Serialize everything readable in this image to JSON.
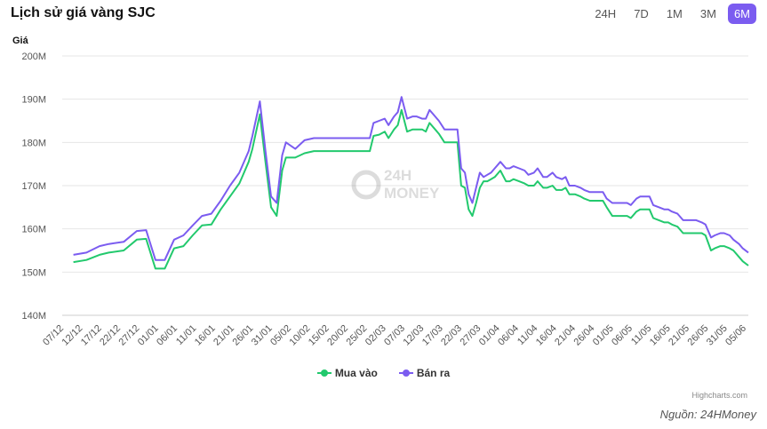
{
  "header": {
    "title": "Lịch sử giá vàng SJC",
    "tabs": [
      {
        "label": "24H",
        "active": false
      },
      {
        "label": "7D",
        "active": false
      },
      {
        "label": "1M",
        "active": false
      },
      {
        "label": "3M",
        "active": false
      },
      {
        "label": "6M",
        "active": true
      }
    ]
  },
  "watermark": "24H MONEY",
  "credits": "Highcharts.com",
  "source": "Nguồn: 24HMoney",
  "chart_data": {
    "type": "line",
    "title": "Lịch sử giá vàng SJC",
    "ylabel": "Giá",
    "xlabel": "",
    "ylim": [
      140,
      200
    ],
    "yticks": [
      140,
      150,
      160,
      170,
      180,
      190,
      200
    ],
    "ytick_suffix": "M",
    "grid": true,
    "legend_position": "bottom-center",
    "x_ticks": [
      "07/12",
      "12/12",
      "17/12",
      "22/12",
      "27/12",
      "01/01",
      "06/01",
      "11/01",
      "16/01",
      "21/01",
      "26/01",
      "31/01",
      "05/02",
      "10/02",
      "15/02",
      "20/02",
      "25/02",
      "02/03",
      "07/03",
      "12/03",
      "17/03",
      "22/03",
      "27/03",
      "01/04",
      "06/04",
      "11/04",
      "16/04",
      "21/04",
      "26/04",
      "01/05",
      "06/05",
      "11/05",
      "16/05",
      "21/05",
      "26/05",
      "31/05",
      "05/06"
    ],
    "series": [
      {
        "name": "Mua vào",
        "color": "#22c96d",
        "values": [
          152.3,
          152.5,
          152.9,
          153.6,
          154.4,
          155.1,
          155.7,
          157.8,
          157.5,
          150.8,
          150.8,
          150.8,
          155.8,
          156.4,
          158.6,
          159.1,
          160.8,
          161.1,
          161.1,
          164.5,
          167.8,
          170.3,
          175.6,
          186.5,
          165.3,
          163.0,
          173.5,
          176.5,
          177.3,
          178.0,
          178.0,
          178.0,
          178.0,
          178.0,
          178.0,
          178.0,
          181.7,
          182.5,
          188.0,
          183.1,
          183.2,
          184.5,
          180.0,
          179.8,
          170.0,
          163.6,
          169.5,
          171.0,
          172.1,
          170.5,
          170.2,
          169.8,
          169.7,
          169.2,
          167.9,
          167.5,
          166.6,
          166.4,
          166.2,
          163.1,
          163.0,
          163.0,
          164.5,
          164.5,
          162.5,
          162.0,
          161.2,
          159.5,
          159.0,
          159.0,
          155.1,
          156.2,
          154.8,
          154.3,
          151.5
        ],
        "points": [
          [
            6,
            152.3
          ],
          [
            13,
            152.8
          ],
          [
            20,
            154.0
          ],
          [
            25,
            154.5
          ],
          [
            33,
            155.0
          ],
          [
            40,
            157.5
          ],
          [
            45,
            157.7
          ],
          [
            50,
            150.8
          ],
          [
            55,
            150.8
          ],
          [
            60,
            155.5
          ],
          [
            65,
            156.0
          ],
          [
            70,
            158.5
          ],
          [
            75,
            160.8
          ],
          [
            80,
            161.0
          ],
          [
            85,
            164.5
          ],
          [
            90,
            167.5
          ],
          [
            95,
            170.5
          ],
          [
            100,
            175.5
          ],
          [
            102,
            178.5
          ],
          [
            106,
            186.5
          ],
          [
            109,
            175.5
          ],
          [
            112,
            165.0
          ],
          [
            115,
            163.0
          ],
          [
            118,
            173.5
          ],
          [
            120,
            176.5
          ],
          [
            125,
            176.5
          ],
          [
            130,
            177.5
          ],
          [
            135,
            178.0
          ],
          [
            140,
            178.0
          ],
          [
            145,
            178.0
          ],
          [
            150,
            178.0
          ],
          [
            155,
            178.0
          ],
          [
            160,
            178.0
          ],
          [
            165,
            178.0
          ],
          [
            167,
            181.5
          ],
          [
            170,
            181.8
          ],
          [
            173,
            182.5
          ],
          [
            175,
            181.0
          ],
          [
            178,
            183.0
          ],
          [
            180,
            184.0
          ],
          [
            182,
            187.5
          ],
          [
            185,
            182.5
          ],
          [
            188,
            183.0
          ],
          [
            190,
            183.0
          ],
          [
            193,
            183.0
          ],
          [
            195,
            182.5
          ],
          [
            197,
            184.5
          ],
          [
            200,
            183.0
          ],
          [
            202,
            182.0
          ],
          [
            205,
            180.0
          ],
          [
            208,
            180.0
          ],
          [
            210,
            180.0
          ],
          [
            212,
            180.0
          ],
          [
            214,
            170.0
          ],
          [
            216,
            169.5
          ],
          [
            218,
            164.5
          ],
          [
            220,
            163.0
          ],
          [
            222,
            166.0
          ],
          [
            224,
            169.5
          ],
          [
            226,
            171.0
          ],
          [
            228,
            171.0
          ],
          [
            230,
            171.5
          ],
          [
            232,
            172.0
          ],
          [
            235,
            173.5
          ],
          [
            238,
            171.0
          ],
          [
            240,
            171.0
          ],
          [
            242,
            171.5
          ],
          [
            245,
            171.0
          ],
          [
            248,
            170.5
          ],
          [
            250,
            170.0
          ],
          [
            253,
            170.0
          ],
          [
            255,
            171.0
          ],
          [
            258,
            169.5
          ],
          [
            260,
            169.5
          ],
          [
            263,
            170.0
          ],
          [
            265,
            169.0
          ],
          [
            268,
            169.0
          ],
          [
            270,
            169.5
          ],
          [
            272,
            168.0
          ],
          [
            275,
            168.0
          ],
          [
            278,
            167.5
          ],
          [
            280,
            167.0
          ],
          [
            283,
            166.5
          ],
          [
            285,
            166.5
          ],
          [
            290,
            166.5
          ],
          [
            292,
            165.0
          ],
          [
            295,
            163.0
          ],
          [
            300,
            163.0
          ],
          [
            303,
            163.0
          ],
          [
            305,
            162.5
          ],
          [
            308,
            164.0
          ],
          [
            310,
            164.5
          ],
          [
            315,
            164.5
          ],
          [
            317,
            162.5
          ],
          [
            320,
            162.0
          ],
          [
            323,
            161.5
          ],
          [
            325,
            161.5
          ],
          [
            327,
            161.0
          ],
          [
            330,
            160.5
          ],
          [
            333,
            159.0
          ],
          [
            335,
            159.0
          ],
          [
            340,
            159.0
          ],
          [
            343,
            159.0
          ],
          [
            345,
            158.5
          ],
          [
            348,
            155.0
          ],
          [
            350,
            155.5
          ],
          [
            353,
            156.0
          ],
          [
            355,
            156.0
          ],
          [
            358,
            155.5
          ],
          [
            360,
            155.0
          ],
          [
            363,
            153.5
          ],
          [
            365,
            152.5
          ],
          [
            368,
            151.5
          ]
        ]
      },
      {
        "name": "Bán ra",
        "color": "#7b5cf0",
        "points": [
          [
            6,
            154.0
          ],
          [
            13,
            154.5
          ],
          [
            20,
            156.0
          ],
          [
            25,
            156.5
          ],
          [
            33,
            157.0
          ],
          [
            40,
            159.5
          ],
          [
            45,
            159.7
          ],
          [
            50,
            152.8
          ],
          [
            55,
            152.8
          ],
          [
            60,
            157.5
          ],
          [
            65,
            158.5
          ],
          [
            70,
            160.8
          ],
          [
            75,
            163.0
          ],
          [
            80,
            163.5
          ],
          [
            85,
            166.5
          ],
          [
            90,
            170.0
          ],
          [
            95,
            173.0
          ],
          [
            100,
            178.0
          ],
          [
            102,
            181.5
          ],
          [
            106,
            189.5
          ],
          [
            109,
            178.0
          ],
          [
            112,
            167.5
          ],
          [
            115,
            166.0
          ],
          [
            118,
            177.0
          ],
          [
            120,
            180.0
          ],
          [
            125,
            178.5
          ],
          [
            130,
            180.5
          ],
          [
            135,
            181.0
          ],
          [
            140,
            181.0
          ],
          [
            145,
            181.0
          ],
          [
            150,
            181.0
          ],
          [
            155,
            181.0
          ],
          [
            160,
            181.0
          ],
          [
            165,
            181.0
          ],
          [
            167,
            184.5
          ],
          [
            170,
            185.0
          ],
          [
            173,
            185.5
          ],
          [
            175,
            184.0
          ],
          [
            178,
            186.0
          ],
          [
            180,
            187.0
          ],
          [
            182,
            190.5
          ],
          [
            185,
            185.5
          ],
          [
            188,
            186.0
          ],
          [
            190,
            186.0
          ],
          [
            193,
            185.5
          ],
          [
            195,
            185.5
          ],
          [
            197,
            187.5
          ],
          [
            200,
            186.0
          ],
          [
            202,
            185.0
          ],
          [
            205,
            183.0
          ],
          [
            208,
            183.0
          ],
          [
            210,
            183.0
          ],
          [
            212,
            183.0
          ],
          [
            214,
            174.0
          ],
          [
            216,
            173.0
          ],
          [
            218,
            168.0
          ],
          [
            220,
            166.0
          ],
          [
            222,
            169.5
          ],
          [
            224,
            173.0
          ],
          [
            226,
            172.0
          ],
          [
            228,
            172.5
          ],
          [
            230,
            173.0
          ],
          [
            232,
            174.0
          ],
          [
            235,
            175.5
          ],
          [
            238,
            174.0
          ],
          [
            240,
            174.0
          ],
          [
            242,
            174.5
          ],
          [
            245,
            174.0
          ],
          [
            248,
            173.5
          ],
          [
            250,
            172.5
          ],
          [
            253,
            173.0
          ],
          [
            255,
            174.0
          ],
          [
            258,
            172.0
          ],
          [
            260,
            172.0
          ],
          [
            263,
            173.0
          ],
          [
            265,
            172.0
          ],
          [
            268,
            171.5
          ],
          [
            270,
            172.0
          ],
          [
            272,
            170.0
          ],
          [
            275,
            170.0
          ],
          [
            278,
            169.5
          ],
          [
            280,
            169.0
          ],
          [
            283,
            168.5
          ],
          [
            285,
            168.5
          ],
          [
            290,
            168.5
          ],
          [
            292,
            167.0
          ],
          [
            295,
            166.0
          ],
          [
            300,
            166.0
          ],
          [
            303,
            166.0
          ],
          [
            305,
            165.5
          ],
          [
            308,
            167.0
          ],
          [
            310,
            167.5
          ],
          [
            315,
            167.5
          ],
          [
            317,
            165.5
          ],
          [
            320,
            165.0
          ],
          [
            323,
            164.5
          ],
          [
            325,
            164.5
          ],
          [
            327,
            164.0
          ],
          [
            330,
            163.5
          ],
          [
            333,
            162.0
          ],
          [
            335,
            162.0
          ],
          [
            340,
            162.0
          ],
          [
            343,
            161.5
          ],
          [
            345,
            161.0
          ],
          [
            348,
            158.0
          ],
          [
            350,
            158.5
          ],
          [
            353,
            159.0
          ],
          [
            355,
            159.0
          ],
          [
            358,
            158.5
          ],
          [
            360,
            157.5
          ],
          [
            363,
            156.5
          ],
          [
            365,
            155.5
          ],
          [
            368,
            154.5
          ]
        ]
      }
    ]
  }
}
